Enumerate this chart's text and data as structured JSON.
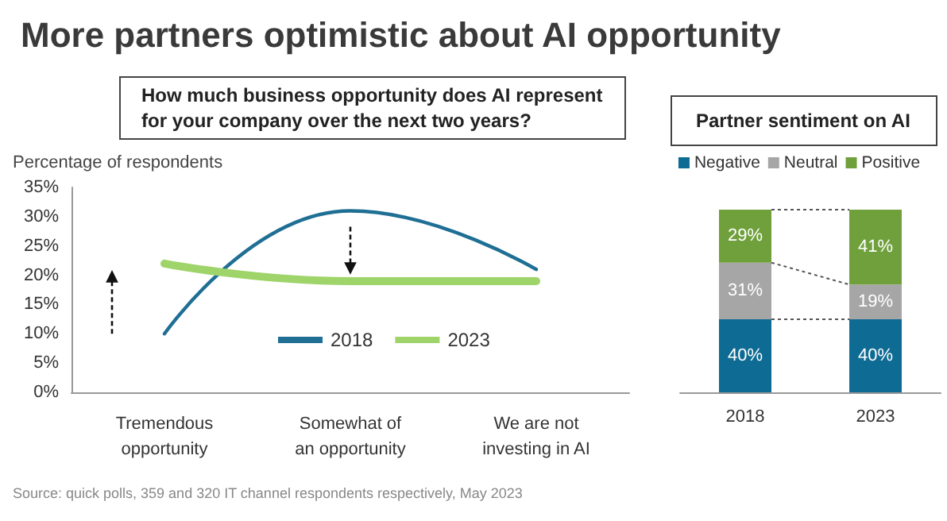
{
  "chart_data": [
    {
      "type": "line",
      "title": "More partners optimistic about AI opportunity",
      "subtitle": "How much business opportunity does AI represent\nfor your company over the next two years?",
      "ylabel": "Percentage of respondents",
      "categories": [
        "Tremendous\nopportunity",
        "Somewhat of\nan opportunity",
        "We are not\ninvesting in AI"
      ],
      "series": [
        {
          "name": "2018",
          "color": "#1f6f95",
          "values": [
            10,
            31,
            21
          ]
        },
        {
          "name": "2023",
          "color": "#9ed46a",
          "values": [
            22,
            19,
            19
          ]
        }
      ],
      "ylim": [
        0,
        35
      ],
      "yticks": [
        {
          "value": 0,
          "label": "0%"
        },
        {
          "value": 5,
          "label": "5%"
        },
        {
          "value": 10,
          "label": "10%"
        },
        {
          "value": 15,
          "label": "15%"
        },
        {
          "value": 20,
          "label": "20%"
        },
        {
          "value": 25,
          "label": "25%"
        },
        {
          "value": 30,
          "label": "30%"
        },
        {
          "value": 35,
          "label": "35%"
        }
      ],
      "legend": "center",
      "grid": false,
      "marker": "none",
      "line_style": "solid",
      "annotations": [
        "Source: quick polls, 359 and 320 IT channel respondents respectively, May 2023"
      ]
    },
    {
      "type": "bar",
      "stacked": true,
      "title": "Partner sentiment on AI",
      "categories": [
        "2018",
        "2023"
      ],
      "series": [
        {
          "name": "Negative",
          "color": "#0e6b94",
          "values": [
            40,
            40
          ],
          "value_labels": [
            "40%",
            "40%"
          ]
        },
        {
          "name": "Neutral",
          "color": "#a6a6a6",
          "values": [
            31,
            19
          ],
          "value_labels": [
            "31%",
            "19%"
          ]
        },
        {
          "name": "Positive",
          "color": "#70a03c",
          "values": [
            29,
            41
          ],
          "value_labels": [
            "29%",
            "41%"
          ]
        }
      ],
      "legend": "top"
    }
  ]
}
